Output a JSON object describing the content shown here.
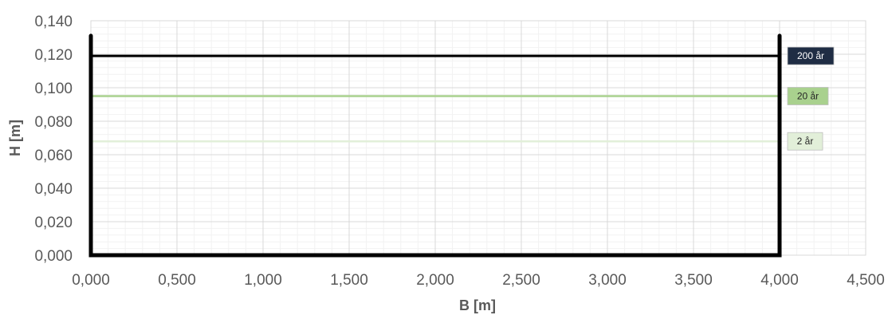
{
  "chart_data": {
    "type": "line",
    "xlabel": "B [m]",
    "ylabel": "H [m]",
    "xlim": [
      0,
      4.5
    ],
    "ylim": [
      0,
      0.14
    ],
    "x_major_step": 0.5,
    "y_major_step": 0.02,
    "x_minor_step": 0.1,
    "y_minor_step": 0.004,
    "grid": true,
    "x_tick_labels": [
      "0,000",
      "0,500",
      "1,000",
      "1,500",
      "2,000",
      "2,500",
      "3,000",
      "3,500",
      "4,000",
      "4,500"
    ],
    "y_tick_labels": [
      "0,000",
      "0,020",
      "0,040",
      "0,060",
      "0,080",
      "0,100",
      "0,120",
      "0,140"
    ],
    "profile": {
      "color": "#000000",
      "x": [
        0,
        0,
        4,
        4
      ],
      "y": [
        0.131,
        0,
        0,
        0.131
      ]
    },
    "series": [
      {
        "name": "200 år",
        "color": "#000000",
        "tag_bg": "#1f2d44",
        "tag_fg": "#ffffff",
        "x": [
          0,
          4
        ],
        "y": [
          0.119,
          0.119
        ]
      },
      {
        "name": "20 år",
        "color": "#a9d18e",
        "tag_bg": "#a9d18e",
        "tag_fg": "#262626",
        "x": [
          0,
          4
        ],
        "y": [
          0.095,
          0.095
        ]
      },
      {
        "name": "2 år",
        "color": "#e2efd9",
        "tag_bg": "#e2efd9",
        "tag_fg": "#262626",
        "x": [
          0,
          4
        ],
        "y": [
          0.068,
          0.068
        ]
      }
    ]
  }
}
